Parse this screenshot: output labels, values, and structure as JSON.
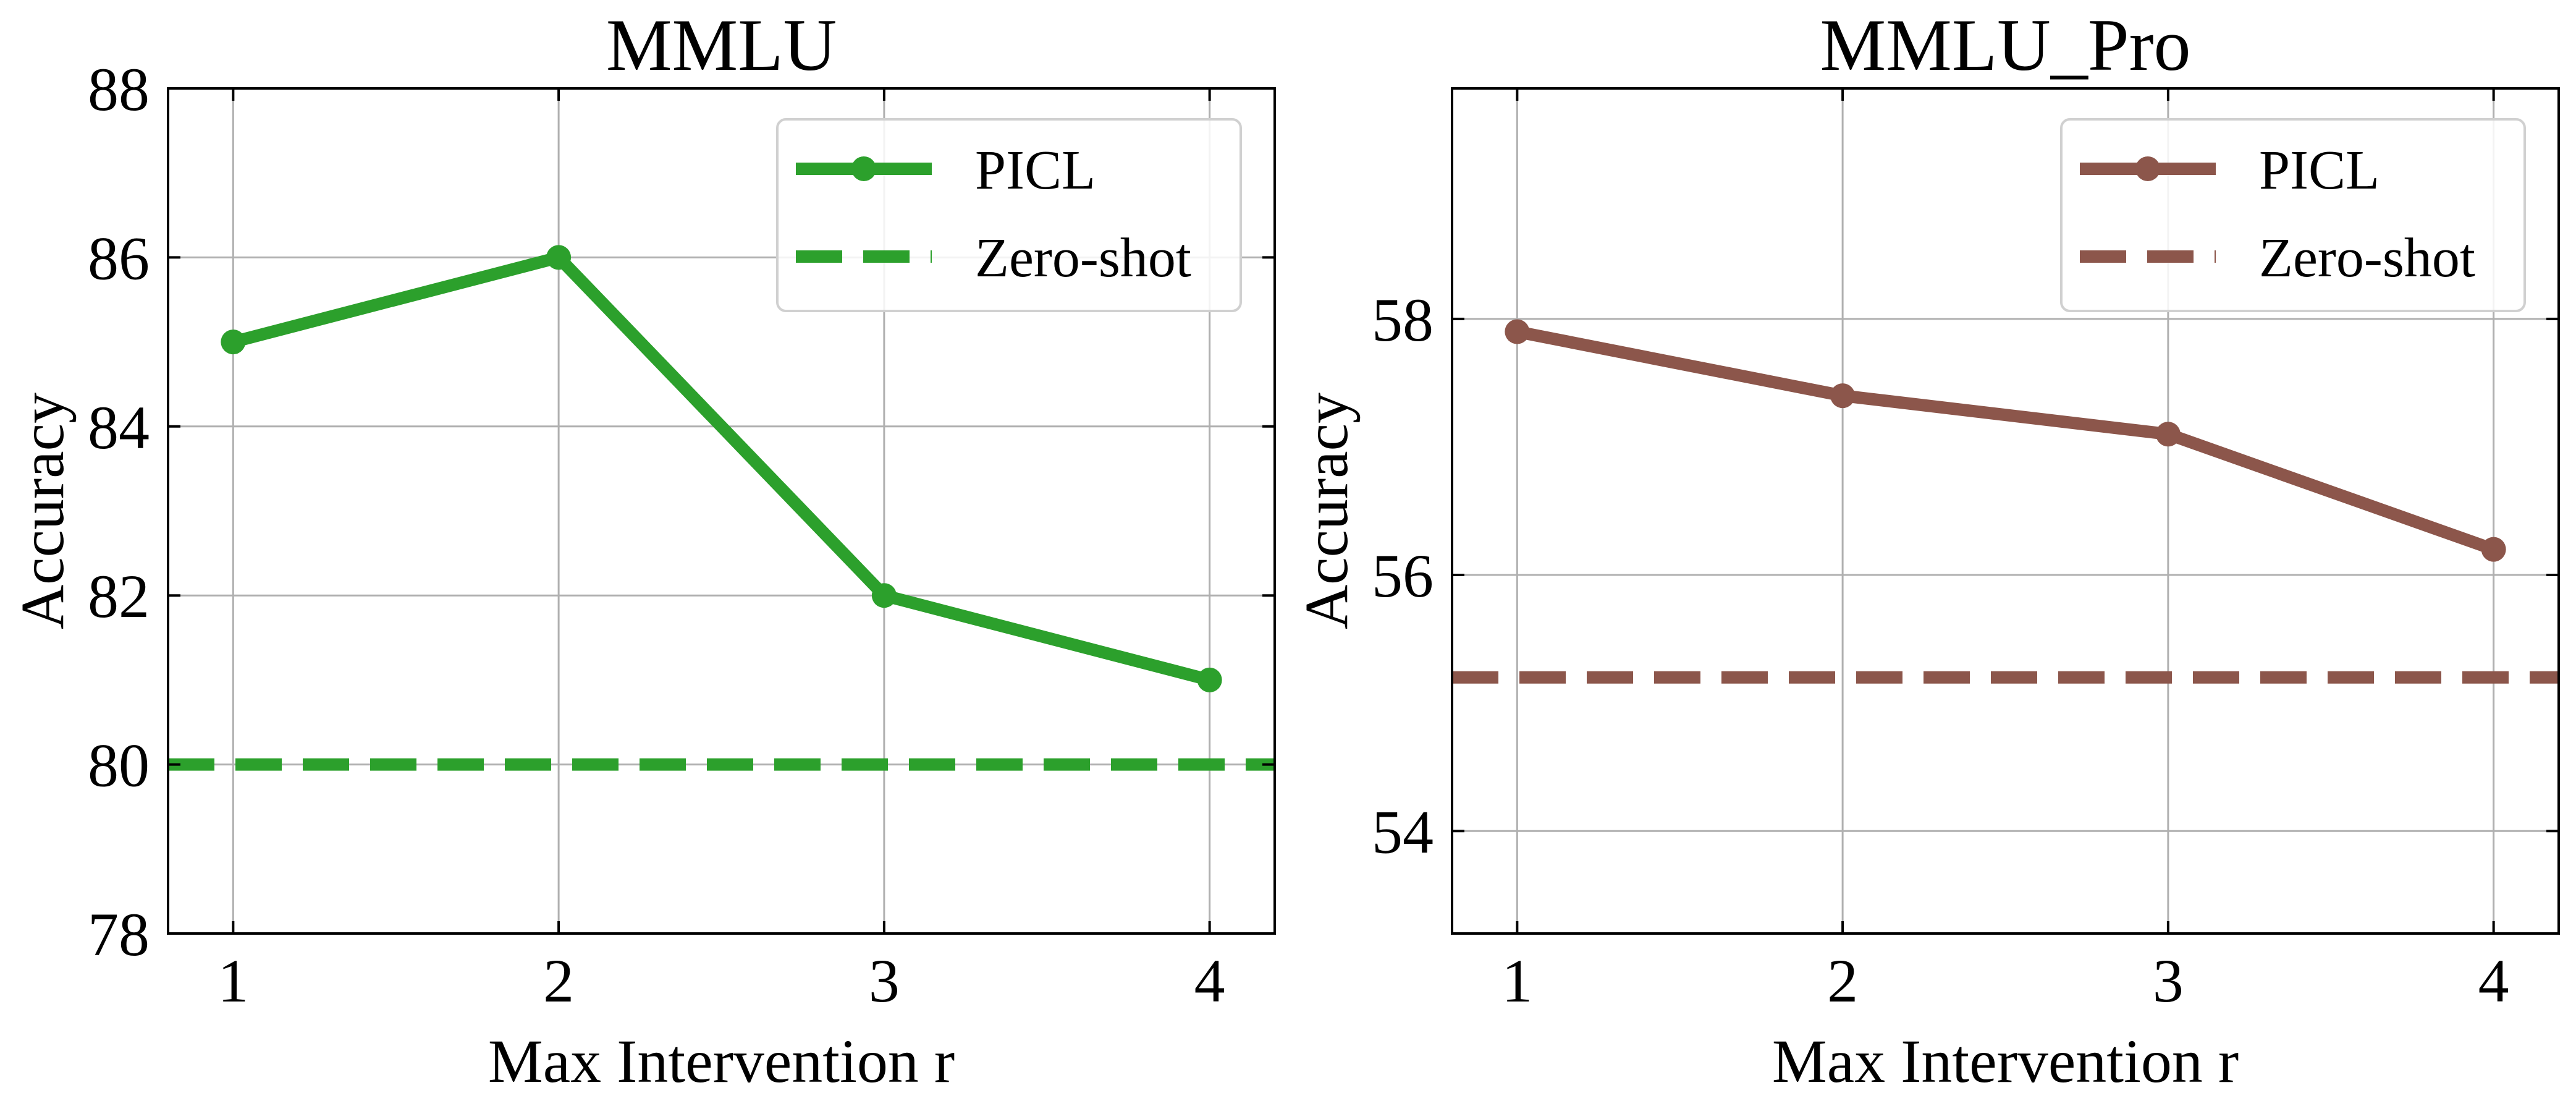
{
  "chart_data": [
    {
      "type": "line",
      "title": "MMLU",
      "xlabel": "Max Intervention r",
      "ylabel": "Accuracy",
      "xlim": [
        0.8,
        4.2
      ],
      "ylim": [
        78,
        88
      ],
      "x_ticks": [
        1,
        2,
        3,
        4
      ],
      "y_ticks": [
        78,
        80,
        82,
        84,
        86,
        88
      ],
      "grid": true,
      "legend_position": "top-right",
      "color": "#2ca02c",
      "series": [
        {
          "name": "PICL",
          "style": "solid-with-markers",
          "x": [
            1,
            2,
            3,
            4
          ],
          "values": [
            85,
            86,
            82,
            81
          ]
        },
        {
          "name": "Zero-shot",
          "style": "dashed",
          "value": 80
        }
      ]
    },
    {
      "type": "line",
      "title": "MMLU_Pro",
      "xlabel": "Max Intervention r",
      "ylabel": "Accuracy",
      "xlim": [
        0.8,
        4.2
      ],
      "ylim": [
        53.2,
        59.8
      ],
      "x_ticks": [
        1,
        2,
        3,
        4
      ],
      "y_ticks": [
        54,
        56,
        58
      ],
      "grid": true,
      "legend_position": "top-right",
      "color": "#8c564b",
      "series": [
        {
          "name": "PICL",
          "style": "solid-with-markers",
          "x": [
            1,
            2,
            3,
            4
          ],
          "values": [
            57.9,
            57.4,
            57.1,
            56.2
          ]
        },
        {
          "name": "Zero-shot",
          "style": "dashed",
          "value": 55.2
        }
      ]
    }
  ]
}
